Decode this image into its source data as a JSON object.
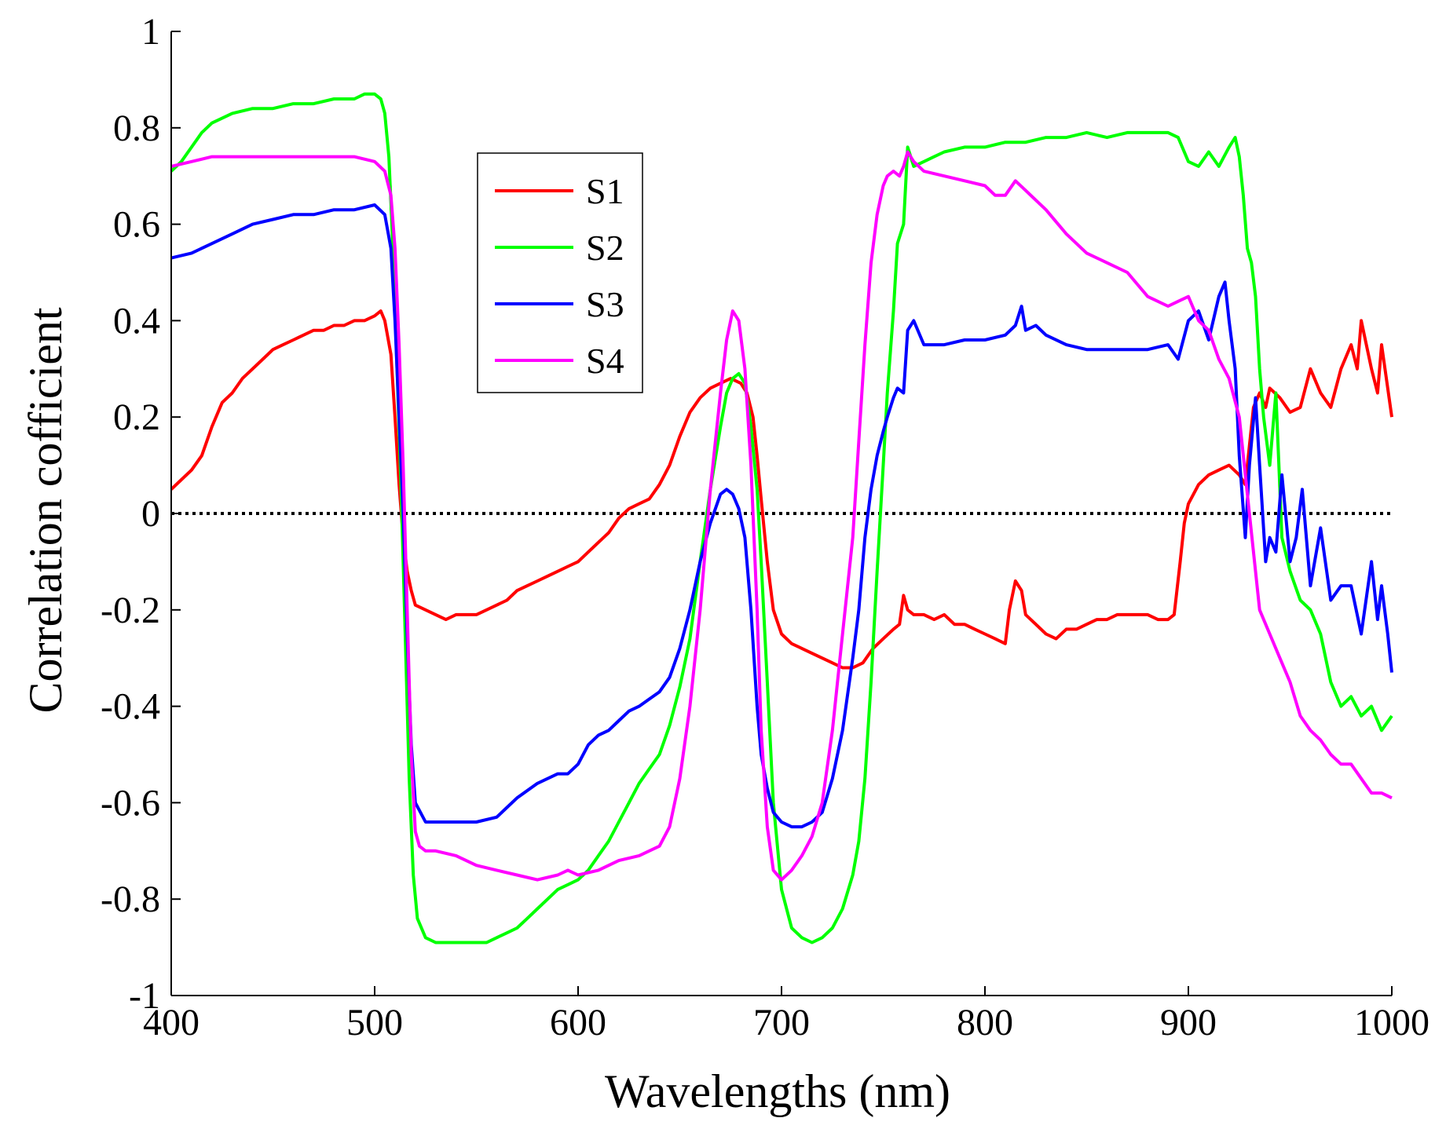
{
  "chart_data": {
    "type": "line",
    "title": "",
    "xlabel": "Wavelengths (nm)",
    "ylabel": "Correlation cofficient",
    "xlim": [
      400,
      1000
    ],
    "ylim": [
      -1,
      1
    ],
    "xticks": [
      400,
      500,
      600,
      700,
      800,
      900,
      1000
    ],
    "yticks": [
      -1,
      -0.8,
      -0.6,
      -0.4,
      -0.2,
      0,
      0.2,
      0.4,
      0.6,
      0.8,
      1
    ],
    "xtick_labels": [
      "400",
      "500",
      "600",
      "700",
      "800",
      "900",
      "1000"
    ],
    "ytick_labels": [
      "-1",
      "-0.8",
      "-0.6",
      "-0.4",
      "-0.2",
      "0",
      "0.2",
      "0.4",
      "0.6",
      "0.8",
      "1"
    ],
    "grid": false,
    "legend_position": "upper-left-center",
    "reference_line": {
      "y": 0,
      "style": "dotted",
      "color": "#000000"
    },
    "series": [
      {
        "name": "S1",
        "color": "#ff0000",
        "x": [
          400,
          405,
          410,
          415,
          420,
          425,
          430,
          435,
          440,
          445,
          450,
          455,
          460,
          465,
          470,
          475,
          480,
          485,
          490,
          495,
          500,
          503,
          505,
          508,
          510,
          512,
          514,
          516,
          518,
          520,
          525,
          530,
          535,
          540,
          545,
          550,
          555,
          560,
          565,
          570,
          575,
          580,
          585,
          590,
          595,
          600,
          605,
          610,
          615,
          620,
          625,
          630,
          635,
          640,
          645,
          650,
          655,
          660,
          665,
          670,
          675,
          680,
          683,
          686,
          688,
          690,
          693,
          696,
          700,
          705,
          710,
          715,
          720,
          725,
          730,
          735,
          740,
          745,
          750,
          755,
          758,
          760,
          762,
          765,
          770,
          775,
          780,
          785,
          790,
          795,
          800,
          805,
          810,
          812,
          815,
          818,
          820,
          825,
          830,
          835,
          840,
          845,
          850,
          855,
          860,
          865,
          870,
          875,
          880,
          885,
          890,
          893,
          896,
          898,
          900,
          905,
          910,
          915,
          920,
          925,
          928,
          930,
          932,
          935,
          938,
          940,
          945,
          950,
          955,
          960,
          965,
          970,
          975,
          980,
          983,
          985,
          990,
          993,
          995,
          1000
        ],
        "values": [
          0.05,
          0.07,
          0.09,
          0.12,
          0.18,
          0.23,
          0.25,
          0.28,
          0.3,
          0.32,
          0.34,
          0.35,
          0.36,
          0.37,
          0.38,
          0.38,
          0.39,
          0.39,
          0.4,
          0.4,
          0.41,
          0.42,
          0.4,
          0.33,
          0.2,
          0.06,
          -0.05,
          -0.12,
          -0.16,
          -0.19,
          -0.2,
          -0.21,
          -0.22,
          -0.21,
          -0.21,
          -0.21,
          -0.2,
          -0.19,
          -0.18,
          -0.16,
          -0.15,
          -0.14,
          -0.13,
          -0.12,
          -0.11,
          -0.1,
          -0.08,
          -0.06,
          -0.04,
          -0.01,
          0.01,
          0.02,
          0.03,
          0.06,
          0.1,
          0.16,
          0.21,
          0.24,
          0.26,
          0.27,
          0.28,
          0.27,
          0.25,
          0.2,
          0.12,
          0.03,
          -0.1,
          -0.2,
          -0.25,
          -0.27,
          -0.28,
          -0.29,
          -0.3,
          -0.31,
          -0.32,
          -0.32,
          -0.31,
          -0.28,
          -0.26,
          -0.24,
          -0.23,
          -0.17,
          -0.2,
          -0.21,
          -0.21,
          -0.22,
          -0.21,
          -0.23,
          -0.23,
          -0.24,
          -0.25,
          -0.26,
          -0.27,
          -0.2,
          -0.14,
          -0.16,
          -0.21,
          -0.23,
          -0.25,
          -0.26,
          -0.24,
          -0.24,
          -0.23,
          -0.22,
          -0.22,
          -0.21,
          -0.21,
          -0.21,
          -0.21,
          -0.22,
          -0.22,
          -0.21,
          -0.1,
          -0.02,
          0.02,
          0.06,
          0.08,
          0.09,
          0.1,
          0.08,
          0.06,
          0.14,
          0.22,
          0.25,
          0.22,
          0.26,
          0.24,
          0.21,
          0.22,
          0.3,
          0.25,
          0.22,
          0.3,
          0.35,
          0.3,
          0.4,
          0.3,
          0.25,
          0.35,
          0.2
        ]
      },
      {
        "name": "S2",
        "color": "#00ff00",
        "x": [
          400,
          405,
          410,
          415,
          420,
          430,
          440,
          450,
          460,
          470,
          480,
          490,
          495,
          500,
          503,
          505,
          507,
          509,
          511,
          513,
          515,
          517,
          519,
          521,
          525,
          530,
          535,
          540,
          545,
          550,
          555,
          560,
          565,
          570,
          575,
          580,
          585,
          590,
          595,
          600,
          605,
          610,
          615,
          620,
          625,
          630,
          635,
          640,
          645,
          650,
          655,
          660,
          665,
          670,
          673,
          676,
          679,
          682,
          685,
          688,
          690,
          693,
          696,
          700,
          705,
          710,
          715,
          720,
          725,
          730,
          735,
          738,
          741,
          744,
          747,
          750,
          752,
          755,
          757,
          760,
          762,
          765,
          770,
          775,
          780,
          790,
          800,
          810,
          820,
          830,
          840,
          850,
          860,
          870,
          880,
          890,
          895,
          900,
          905,
          910,
          915,
          920,
          923,
          925,
          927,
          929,
          931,
          933,
          935,
          937,
          940,
          943,
          946,
          950,
          955,
          960,
          965,
          970,
          975,
          980,
          985,
          990,
          995,
          1000
        ],
        "values": [
          0.71,
          0.73,
          0.76,
          0.79,
          0.81,
          0.83,
          0.84,
          0.84,
          0.85,
          0.85,
          0.86,
          0.86,
          0.87,
          0.87,
          0.86,
          0.83,
          0.74,
          0.55,
          0.3,
          0.05,
          -0.25,
          -0.55,
          -0.75,
          -0.84,
          -0.88,
          -0.89,
          -0.89,
          -0.89,
          -0.89,
          -0.89,
          -0.89,
          -0.88,
          -0.87,
          -0.86,
          -0.84,
          -0.82,
          -0.8,
          -0.78,
          -0.77,
          -0.76,
          -0.74,
          -0.71,
          -0.68,
          -0.64,
          -0.6,
          -0.56,
          -0.53,
          -0.5,
          -0.44,
          -0.36,
          -0.26,
          -0.1,
          0.05,
          0.18,
          0.25,
          0.28,
          0.29,
          0.27,
          0.18,
          0.05,
          -0.1,
          -0.35,
          -0.6,
          -0.78,
          -0.86,
          -0.88,
          -0.89,
          -0.88,
          -0.86,
          -0.82,
          -0.75,
          -0.68,
          -0.55,
          -0.35,
          -0.12,
          0.1,
          0.25,
          0.42,
          0.56,
          0.6,
          0.76,
          0.72,
          0.73,
          0.74,
          0.75,
          0.76,
          0.76,
          0.77,
          0.77,
          0.78,
          0.78,
          0.79,
          0.78,
          0.79,
          0.79,
          0.79,
          0.78,
          0.73,
          0.72,
          0.75,
          0.72,
          0.76,
          0.78,
          0.74,
          0.66,
          0.55,
          0.52,
          0.45,
          0.3,
          0.2,
          0.1,
          0.25,
          -0.05,
          -0.12,
          -0.18,
          -0.2,
          -0.25,
          -0.35,
          -0.4,
          -0.38,
          -0.42,
          -0.4,
          -0.45,
          -0.42
        ]
      },
      {
        "name": "S3",
        "color": "#0000ff",
        "x": [
          400,
          410,
          420,
          430,
          440,
          450,
          460,
          470,
          480,
          490,
          500,
          505,
          508,
          510,
          512,
          514,
          516,
          518,
          520,
          525,
          530,
          540,
          550,
          560,
          565,
          570,
          580,
          590,
          595,
          600,
          605,
          610,
          615,
          620,
          625,
          630,
          640,
          645,
          650,
          655,
          660,
          665,
          670,
          673,
          676,
          679,
          682,
          685,
          688,
          690,
          693,
          696,
          700,
          705,
          710,
          715,
          720,
          725,
          730,
          735,
          738,
          741,
          744,
          747,
          750,
          752,
          755,
          757,
          760,
          762,
          765,
          770,
          780,
          790,
          800,
          810,
          815,
          818,
          820,
          825,
          830,
          840,
          850,
          860,
          870,
          880,
          890,
          895,
          900,
          905,
          910,
          915,
          918,
          920,
          923,
          925,
          928,
          930,
          933,
          935,
          938,
          940,
          943,
          946,
          950,
          953,
          956,
          960,
          965,
          970,
          975,
          980,
          985,
          990,
          993,
          995,
          998,
          1000
        ],
        "values": [
          0.53,
          0.54,
          0.56,
          0.58,
          0.6,
          0.61,
          0.62,
          0.62,
          0.63,
          0.63,
          0.64,
          0.62,
          0.55,
          0.4,
          0.2,
          0.0,
          -0.25,
          -0.48,
          -0.6,
          -0.64,
          -0.64,
          -0.64,
          -0.64,
          -0.63,
          -0.61,
          -0.59,
          -0.56,
          -0.54,
          -0.54,
          -0.52,
          -0.48,
          -0.46,
          -0.45,
          -0.43,
          -0.41,
          -0.4,
          -0.37,
          -0.34,
          -0.28,
          -0.2,
          -0.1,
          -0.02,
          0.04,
          0.05,
          0.04,
          0.01,
          -0.05,
          -0.2,
          -0.4,
          -0.5,
          -0.57,
          -0.62,
          -0.64,
          -0.65,
          -0.65,
          -0.64,
          -0.62,
          -0.55,
          -0.45,
          -0.3,
          -0.2,
          -0.05,
          0.05,
          0.12,
          0.17,
          0.2,
          0.24,
          0.26,
          0.25,
          0.38,
          0.4,
          0.35,
          0.35,
          0.36,
          0.36,
          0.37,
          0.39,
          0.43,
          0.38,
          0.39,
          0.37,
          0.35,
          0.34,
          0.34,
          0.34,
          0.34,
          0.35,
          0.32,
          0.4,
          0.42,
          0.36,
          0.45,
          0.48,
          0.4,
          0.3,
          0.12,
          -0.05,
          0.1,
          0.24,
          0.1,
          -0.1,
          -0.05,
          -0.08,
          0.08,
          -0.1,
          -0.05,
          0.05,
          -0.15,
          -0.03,
          -0.18,
          -0.15,
          -0.15,
          -0.25,
          -0.1,
          -0.22,
          -0.15,
          -0.25,
          -0.33
        ]
      },
      {
        "name": "S4",
        "color": "#ff00ff",
        "x": [
          400,
          410,
          420,
          430,
          440,
          450,
          460,
          470,
          480,
          490,
          500,
          505,
          508,
          510,
          512,
          514,
          516,
          518,
          520,
          522,
          525,
          530,
          540,
          550,
          560,
          570,
          580,
          590,
          595,
          600,
          610,
          620,
          630,
          640,
          645,
          650,
          655,
          660,
          665,
          670,
          673,
          676,
          679,
          682,
          685,
          688,
          690,
          693,
          696,
          700,
          705,
          710,
          715,
          720,
          725,
          730,
          735,
          738,
          741,
          744,
          747,
          750,
          752,
          755,
          758,
          760,
          762,
          765,
          770,
          780,
          790,
          800,
          805,
          810,
          815,
          820,
          830,
          840,
          850,
          860,
          870,
          880,
          890,
          895,
          900,
          905,
          910,
          915,
          920,
          925,
          930,
          935,
          940,
          945,
          950,
          955,
          960,
          965,
          970,
          975,
          980,
          985,
          990,
          995,
          1000
        ],
        "values": [
          0.72,
          0.73,
          0.74,
          0.74,
          0.74,
          0.74,
          0.74,
          0.74,
          0.74,
          0.74,
          0.73,
          0.71,
          0.66,
          0.55,
          0.35,
          0.1,
          -0.2,
          -0.5,
          -0.66,
          -0.69,
          -0.7,
          -0.7,
          -0.71,
          -0.73,
          -0.74,
          -0.75,
          -0.76,
          -0.75,
          -0.74,
          -0.75,
          -0.74,
          -0.72,
          -0.71,
          -0.69,
          -0.65,
          -0.55,
          -0.4,
          -0.2,
          0.05,
          0.25,
          0.36,
          0.42,
          0.4,
          0.3,
          0.1,
          -0.2,
          -0.45,
          -0.65,
          -0.74,
          -0.76,
          -0.74,
          -0.71,
          -0.67,
          -0.6,
          -0.45,
          -0.25,
          -0.05,
          0.15,
          0.35,
          0.52,
          0.62,
          0.68,
          0.7,
          0.71,
          0.7,
          0.72,
          0.75,
          0.73,
          0.71,
          0.7,
          0.69,
          0.68,
          0.66,
          0.66,
          0.69,
          0.67,
          0.63,
          0.58,
          0.54,
          0.52,
          0.5,
          0.45,
          0.43,
          0.44,
          0.45,
          0.4,
          0.38,
          0.32,
          0.28,
          0.2,
          0.0,
          -0.2,
          -0.25,
          -0.3,
          -0.35,
          -0.42,
          -0.45,
          -0.47,
          -0.5,
          -0.52,
          -0.52,
          -0.55,
          -0.58,
          -0.58,
          -0.59
        ]
      }
    ]
  }
}
